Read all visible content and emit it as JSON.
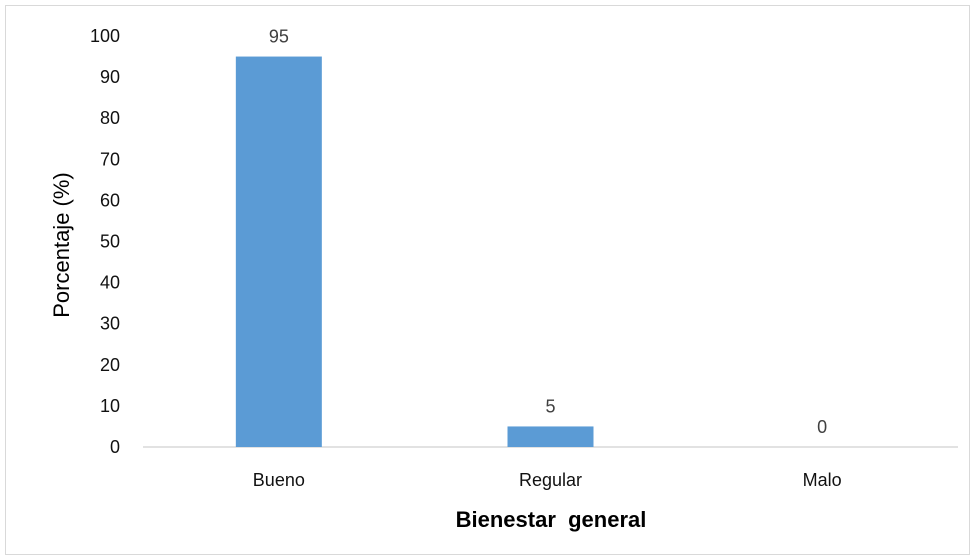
{
  "chart_data": {
    "type": "bar",
    "categories": [
      "Bueno",
      "Regular",
      "Malo"
    ],
    "values": [
      95,
      5,
      0
    ],
    "data_labels": [
      "95",
      "5",
      "0"
    ],
    "xlabel": "Bienestar  general",
    "ylabel": "Porcentaje (%)",
    "ylim": [
      0,
      100
    ],
    "yticks": [
      "0",
      "10",
      "20",
      "30",
      "40",
      "50",
      "60",
      "70",
      "80",
      "90",
      "100"
    ],
    "bar_color": "#5b9bd5",
    "grid": false,
    "legend": "none"
  }
}
